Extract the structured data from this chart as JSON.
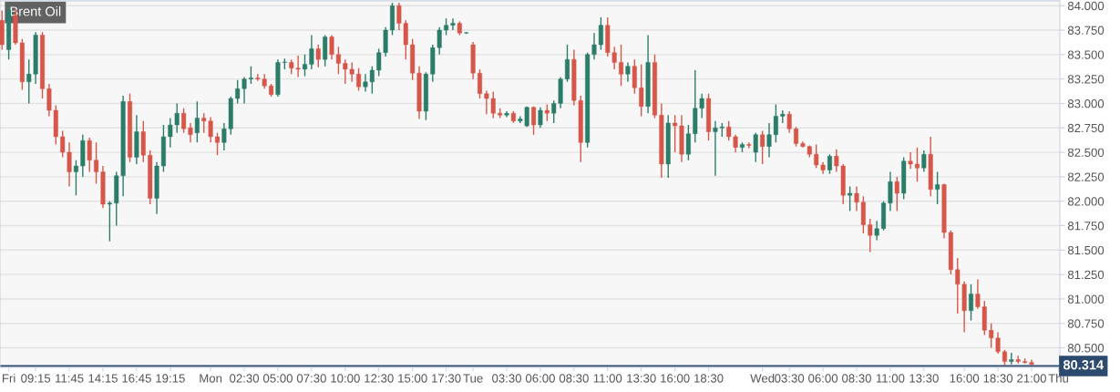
{
  "chart_data": {
    "type": "candlestick",
    "title": "Brent Oil",
    "categories": [
      null,
      "Fri",
      null,
      null,
      null,
      "09:15",
      null,
      null,
      null,
      null,
      "11:45",
      null,
      null,
      null,
      null,
      "14:15",
      null,
      null,
      null,
      null,
      "16:45",
      null,
      null,
      null,
      null,
      "19:15",
      null,
      null,
      null,
      null,
      null,
      "Mon",
      null,
      null,
      null,
      null,
      "02:30",
      null,
      null,
      null,
      null,
      "05:00",
      null,
      null,
      null,
      null,
      "07:30",
      null,
      null,
      null,
      null,
      "10:00",
      null,
      null,
      null,
      null,
      "12:30",
      null,
      null,
      null,
      null,
      "15:00",
      null,
      null,
      null,
      null,
      "17:30",
      null,
      null,
      null,
      "Tue",
      null,
      null,
      null,
      null,
      "03:30",
      null,
      null,
      null,
      null,
      "06:00",
      null,
      null,
      null,
      null,
      "08:30",
      null,
      null,
      null,
      null,
      "11:00",
      null,
      null,
      null,
      null,
      "13:30",
      null,
      null,
      null,
      null,
      "16:00",
      null,
      null,
      null,
      null,
      "18:30",
      null,
      null,
      null,
      null,
      null,
      null,
      null,
      "Wed",
      null,
      null,
      null,
      "03:30",
      null,
      null,
      null,
      null,
      "06:00",
      null,
      null,
      null,
      null,
      "08:30",
      null,
      null,
      null,
      null,
      "11:00",
      null,
      null,
      null,
      null,
      "13:30",
      null,
      null,
      null,
      null,
      null,
      "16:00",
      null,
      null,
      null,
      null,
      "18:30",
      null,
      null,
      null,
      null,
      "21:00",
      null,
      null,
      null,
      "Thu"
    ],
    "ohlc": [
      [
        83.85,
        83.95,
        83.55,
        83.6
      ],
      [
        83.55,
        84.02,
        83.45,
        83.95
      ],
      [
        83.9,
        83.96,
        83.6,
        83.62
      ],
      [
        83.62,
        83.66,
        83.14,
        83.22
      ],
      [
        83.22,
        83.45,
        83.0,
        83.3
      ],
      [
        83.3,
        83.73,
        83.2,
        83.7
      ],
      [
        83.7,
        83.73,
        83.05,
        83.15
      ],
      [
        83.15,
        83.2,
        82.87,
        82.93
      ],
      [
        82.93,
        82.98,
        82.58,
        82.66
      ],
      [
        82.66,
        82.72,
        82.45,
        82.5
      ],
      [
        82.5,
        82.6,
        82.15,
        82.3
      ],
      [
        82.3,
        82.42,
        82.06,
        82.36
      ],
      [
        82.36,
        82.68,
        82.25,
        82.62
      ],
      [
        82.62,
        82.65,
        82.3,
        82.42
      ],
      [
        82.42,
        82.6,
        82.18,
        82.3
      ],
      [
        82.3,
        82.36,
        81.93,
        81.97
      ],
      [
        81.97,
        82.0,
        81.59,
        81.98
      ],
      [
        81.98,
        82.3,
        81.75,
        82.26
      ],
      [
        82.26,
        83.08,
        82.05,
        83.02
      ],
      [
        83.02,
        83.1,
        82.4,
        82.45
      ],
      [
        82.45,
        82.88,
        82.38,
        82.71
      ],
      [
        82.71,
        82.82,
        82.4,
        82.47
      ],
      [
        82.47,
        82.52,
        81.97,
        82.03
      ],
      [
        82.03,
        82.4,
        81.87,
        82.36
      ],
      [
        82.36,
        82.78,
        82.3,
        82.66
      ],
      [
        82.66,
        82.85,
        82.55,
        82.78
      ],
      [
        82.78,
        83.0,
        82.7,
        82.9
      ],
      [
        82.9,
        82.95,
        82.7,
        82.74
      ],
      [
        82.75,
        82.8,
        82.6,
        82.68
      ],
      [
        82.7,
        83.02,
        82.6,
        82.85
      ],
      [
        82.85,
        82.9,
        82.7,
        82.82
      ],
      [
        82.82,
        82.86,
        82.6,
        82.66
      ],
      [
        82.66,
        82.7,
        82.47,
        82.6
      ],
      [
        82.6,
        82.8,
        82.52,
        82.74
      ],
      [
        82.74,
        83.07,
        82.68,
        83.05
      ],
      [
        83.05,
        83.24,
        83.0,
        83.15
      ],
      [
        83.15,
        83.27,
        83.0,
        83.25
      ],
      [
        83.25,
        83.38,
        83.2,
        83.26
      ],
      [
        83.26,
        83.3,
        83.23,
        83.25
      ],
      [
        83.25,
        83.3,
        83.15,
        83.18
      ],
      [
        83.18,
        83.2,
        83.07,
        83.09
      ],
      [
        83.09,
        83.45,
        83.07,
        83.42
      ],
      [
        83.42,
        83.46,
        83.35,
        83.42
      ],
      [
        83.42,
        83.45,
        83.3,
        83.36
      ],
      [
        83.36,
        83.49,
        83.27,
        83.35
      ],
      [
        83.35,
        83.5,
        83.28,
        83.4
      ],
      [
        83.4,
        83.7,
        83.35,
        83.56
      ],
      [
        83.56,
        83.6,
        83.37,
        83.45
      ],
      [
        83.45,
        83.7,
        83.38,
        83.68
      ],
      [
        83.68,
        83.7,
        83.45,
        83.5
      ],
      [
        83.5,
        83.58,
        83.3,
        83.41
      ],
      [
        83.41,
        83.45,
        83.2,
        83.35
      ],
      [
        83.35,
        83.42,
        83.22,
        83.3
      ],
      [
        83.3,
        83.36,
        83.13,
        83.17
      ],
      [
        83.17,
        83.3,
        83.12,
        83.22
      ],
      [
        83.22,
        83.38,
        83.1,
        83.34
      ],
      [
        83.34,
        83.56,
        83.28,
        83.52
      ],
      [
        83.52,
        83.78,
        83.48,
        83.75
      ],
      [
        83.75,
        84.03,
        83.7,
        84.0
      ],
      [
        84.0,
        84.03,
        83.75,
        83.82
      ],
      [
        83.82,
        83.85,
        83.45,
        83.6
      ],
      [
        83.6,
        83.66,
        83.24,
        83.31
      ],
      [
        83.31,
        83.38,
        82.84,
        82.92
      ],
      [
        82.92,
        83.32,
        82.83,
        83.3
      ],
      [
        83.3,
        83.6,
        83.22,
        83.57
      ],
      [
        83.57,
        83.78,
        83.5,
        83.75
      ],
      [
        83.75,
        83.87,
        83.7,
        83.8
      ],
      [
        83.8,
        83.87,
        83.75,
        83.82
      ],
      [
        83.82,
        83.84,
        83.7,
        83.72
      ],
      [
        83.72,
        83.73,
        83.71,
        83.72
      ],
      [
        83.6,
        83.63,
        83.25,
        83.31
      ],
      [
        83.31,
        83.35,
        83.05,
        83.1
      ],
      [
        83.1,
        83.13,
        82.89,
        83.05
      ],
      [
        83.05,
        83.12,
        82.85,
        82.9
      ],
      [
        82.9,
        82.95,
        82.85,
        82.88
      ],
      [
        82.88,
        82.92,
        82.86,
        82.9
      ],
      [
        82.9,
        82.92,
        82.8,
        82.82
      ],
      [
        82.82,
        82.87,
        82.8,
        82.84
      ],
      [
        82.77,
        82.97,
        82.76,
        82.96
      ],
      [
        82.96,
        82.97,
        82.68,
        82.78
      ],
      [
        82.78,
        82.96,
        82.75,
        82.93
      ],
      [
        82.93,
        82.99,
        82.82,
        82.9
      ],
      [
        82.9,
        83.03,
        82.8,
        83.0
      ],
      [
        83.0,
        83.27,
        82.95,
        83.25
      ],
      [
        83.25,
        83.6,
        83.22,
        83.45
      ],
      [
        83.45,
        83.55,
        82.98,
        83.03
      ],
      [
        83.03,
        83.08,
        82.4,
        82.6
      ],
      [
        82.6,
        83.52,
        82.55,
        83.5
      ],
      [
        83.5,
        83.72,
        83.45,
        83.6
      ],
      [
        83.6,
        83.88,
        83.55,
        83.8
      ],
      [
        83.8,
        83.88,
        83.48,
        83.52
      ],
      [
        83.52,
        83.58,
        83.35,
        83.42
      ],
      [
        83.42,
        83.6,
        83.18,
        83.3
      ],
      [
        83.3,
        83.42,
        83.22,
        83.38
      ],
      [
        83.38,
        83.45,
        83.1,
        83.16
      ],
      [
        83.16,
        83.4,
        82.87,
        82.97
      ],
      [
        82.97,
        83.7,
        82.9,
        83.42
      ],
      [
        83.42,
        83.5,
        82.85,
        82.88
      ],
      [
        82.88,
        83.0,
        82.24,
        82.38
      ],
      [
        82.38,
        82.88,
        82.24,
        82.8
      ],
      [
        82.8,
        82.88,
        82.5,
        82.77
      ],
      [
        82.77,
        82.88,
        82.4,
        82.48
      ],
      [
        82.48,
        82.78,
        82.42,
        82.69
      ],
      [
        82.69,
        83.34,
        82.6,
        82.95
      ],
      [
        82.95,
        83.1,
        82.85,
        83.05
      ],
      [
        83.05,
        83.1,
        82.62,
        82.71
      ],
      [
        82.71,
        82.82,
        82.26,
        82.75
      ],
      [
        82.75,
        82.8,
        82.66,
        82.76
      ],
      [
        82.76,
        82.82,
        82.62,
        82.66
      ],
      [
        82.66,
        82.68,
        82.5,
        82.55
      ],
      [
        82.55,
        82.6,
        82.5,
        82.58
      ],
      [
        82.58,
        82.6,
        82.54,
        82.57
      ],
      [
        82.5,
        82.7,
        82.4,
        82.68
      ],
      [
        82.68,
        82.72,
        82.38,
        82.56
      ],
      [
        82.56,
        82.8,
        82.45,
        82.68
      ],
      [
        82.68,
        82.99,
        82.6,
        82.87
      ],
      [
        82.87,
        82.93,
        82.8,
        82.89
      ],
      [
        82.89,
        82.92,
        82.7,
        82.74
      ],
      [
        82.74,
        82.76,
        82.56,
        82.59
      ],
      [
        82.59,
        82.61,
        82.55,
        82.56
      ],
      [
        82.56,
        82.57,
        82.45,
        82.48
      ],
      [
        82.48,
        82.58,
        82.34,
        82.37
      ],
      [
        82.37,
        82.4,
        82.28,
        82.32
      ],
      [
        82.32,
        82.48,
        82.28,
        82.46
      ],
      [
        82.46,
        82.53,
        82.3,
        82.36
      ],
      [
        82.36,
        82.38,
        81.97,
        82.06
      ],
      [
        82.06,
        82.15,
        81.9,
        82.08
      ],
      [
        82.08,
        82.15,
        81.9,
        81.99
      ],
      [
        81.99,
        82.05,
        81.67,
        81.76
      ],
      [
        81.76,
        81.82,
        81.48,
        81.65
      ],
      [
        81.65,
        81.8,
        81.6,
        81.72
      ],
      [
        81.72,
        82.0,
        81.7,
        81.98
      ],
      [
        81.98,
        82.3,
        81.9,
        82.2
      ],
      [
        82.2,
        82.25,
        81.9,
        82.08
      ],
      [
        82.08,
        82.45,
        82.02,
        82.41
      ],
      [
        82.41,
        82.5,
        82.33,
        82.38
      ],
      [
        82.38,
        82.55,
        82.2,
        82.34
      ],
      [
        82.34,
        82.52,
        82.3,
        82.48
      ],
      [
        82.48,
        82.66,
        82.05,
        82.12
      ],
      [
        82.12,
        82.3,
        81.97,
        82.17
      ],
      [
        82.17,
        82.18,
        81.62,
        81.68
      ],
      [
        81.68,
        81.7,
        81.25,
        81.3
      ],
      [
        81.3,
        81.42,
        80.85,
        81.15
      ],
      [
        81.15,
        81.18,
        80.66,
        80.88
      ],
      [
        80.88,
        81.15,
        80.78,
        81.05
      ],
      [
        81.05,
        81.2,
        80.9,
        80.92
      ],
      [
        80.92,
        80.98,
        80.63,
        80.68
      ],
      [
        80.68,
        80.75,
        80.5,
        80.6
      ],
      [
        80.6,
        80.66,
        80.44,
        80.46
      ],
      [
        80.46,
        80.48,
        80.32,
        80.36
      ],
      [
        80.36,
        80.45,
        80.33,
        80.38
      ],
      [
        80.38,
        80.42,
        80.34,
        80.36
      ],
      [
        80.36,
        80.39,
        80.34,
        80.35
      ],
      [
        80.35,
        80.38,
        80.32,
        80.33
      ],
      null,
      null,
      null,
      null
    ],
    "ylim": [
      80.3,
      84.05
    ],
    "yticks": [
      {
        "value": 80.5,
        "label": "80.500"
      },
      {
        "value": 80.75,
        "label": "80.750"
      },
      {
        "value": 81.0,
        "label": "81.000"
      },
      {
        "value": 81.25,
        "label": "81.250"
      },
      {
        "value": 81.5,
        "label": "81.500"
      },
      {
        "value": 81.75,
        "label": "81.750"
      },
      {
        "value": 82.0,
        "label": "82.000"
      },
      {
        "value": 82.25,
        "label": "82.250"
      },
      {
        "value": 82.5,
        "label": "82.500"
      },
      {
        "value": 82.75,
        "label": "82.750"
      },
      {
        "value": 83.0,
        "label": "83.000"
      },
      {
        "value": 83.25,
        "label": "83.250"
      },
      {
        "value": 83.5,
        "label": "83.500"
      },
      {
        "value": 83.75,
        "label": "83.750"
      },
      {
        "value": 84.0,
        "label": "84.000"
      }
    ],
    "ref_lines": [
      {
        "axis": "y",
        "value": 80.314,
        "label": "80.314",
        "color": "#2c4a6e"
      }
    ],
    "grid": "y",
    "legend": false
  }
}
